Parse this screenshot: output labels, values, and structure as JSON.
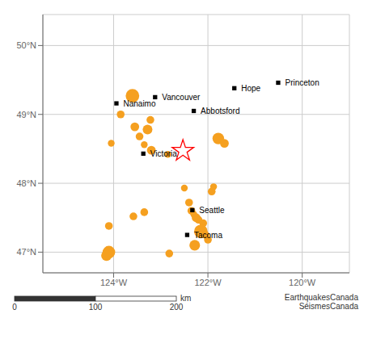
{
  "chart_data": {
    "type": "scatter",
    "xlim": [
      -125.5,
      -119.0
    ],
    "ylim": [
      46.7,
      50.45
    ],
    "xticks": [
      {
        "value": -124,
        "label": "124°W"
      },
      {
        "value": -122,
        "label": "122°W"
      },
      {
        "value": -120,
        "label": "120°W"
      }
    ],
    "yticks": [
      {
        "value": 47,
        "label": "47°N"
      },
      {
        "value": 48,
        "label": "48°N"
      },
      {
        "value": 49,
        "label": "49°N"
      },
      {
        "value": 50,
        "label": "50°N"
      }
    ],
    "grid": true,
    "color": "#f5a020",
    "marker": "circle",
    "x": [
      -124.05,
      -123.85,
      -123.6,
      -123.55,
      -123.45,
      -123.35,
      -123.28,
      -123.22,
      -123.2,
      -122.85,
      -121.78,
      -121.65,
      -122.5,
      -122.4,
      -122.35,
      -122.3,
      -122.25,
      -122.2,
      -122.1,
      -122.15,
      -122.05,
      -122.0,
      -122.28,
      -123.35,
      -123.58,
      -124.1,
      -124.1,
      -124.15,
      -122.82,
      -121.92,
      -121.88
    ],
    "values": [
      48.58,
      49.0,
      49.27,
      48.82,
      48.68,
      48.56,
      48.78,
      48.92,
      48.48,
      48.42,
      48.65,
      48.58,
      47.93,
      47.72,
      47.6,
      47.55,
      47.5,
      47.47,
      47.42,
      47.3,
      47.25,
      47.18,
      47.1,
      47.58,
      47.52,
      47.38,
      47.0,
      46.95,
      46.98,
      47.88,
      47.95
    ],
    "sizes": [
      7,
      8,
      14,
      9,
      8,
      7,
      10,
      8,
      9,
      7,
      12,
      9,
      7,
      8,
      8,
      7,
      9,
      8,
      8,
      14,
      8,
      8,
      11,
      8,
      8,
      8,
      13,
      11,
      8,
      8,
      7
    ],
    "annotations": [
      {
        "text": "Vancouver",
        "x": -123.12,
        "y": 49.25,
        "marker": "square",
        "color": "black"
      },
      {
        "text": "Nanaimo",
        "x": -123.94,
        "y": 49.16,
        "marker": "square",
        "color": "black"
      },
      {
        "text": "Victoria",
        "x": -123.37,
        "y": 48.43,
        "marker": "square",
        "color": "black"
      },
      {
        "text": "Abbotsford",
        "x": -122.3,
        "y": 49.05,
        "marker": "square",
        "color": "black"
      },
      {
        "text": "Hope",
        "x": -121.44,
        "y": 49.38,
        "marker": "square",
        "color": "black"
      },
      {
        "text": "Princeton",
        "x": -120.51,
        "y": 49.46,
        "marker": "square",
        "color": "black"
      },
      {
        "text": "Seattle",
        "x": -122.33,
        "y": 47.61,
        "marker": "square",
        "color": "black"
      },
      {
        "text": "Tacoma",
        "x": -122.44,
        "y": 47.25,
        "marker": "square",
        "color": "black"
      }
    ],
    "star": {
      "x": -122.53,
      "y": 48.47,
      "marker": "star",
      "color": "red"
    },
    "scale_ticks": [
      0,
      100,
      200
    ],
    "scale_unit": "km",
    "credit": "EarthquakesCanada\nSéismesCanada"
  }
}
